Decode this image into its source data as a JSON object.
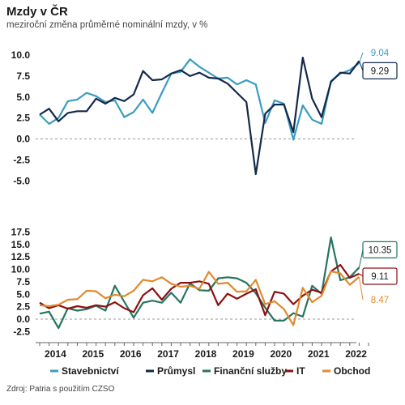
{
  "title": "Mzdy v ČR",
  "subtitle": "meziroční změna průměrné nominální mzdy, v %",
  "source": "Zdroj: Patria s použitím CZSO",
  "colors": {
    "stavebnictvi": "#3a9cbf",
    "prumysl": "#13294b",
    "financni": "#25755f",
    "it": "#8b1010",
    "obchod": "#e08a2e"
  },
  "chart_data": [
    {
      "type": "line",
      "x_tick_labels": [
        "2014",
        "2015",
        "2016",
        "2017",
        "2018",
        "2019",
        "2020",
        "2021",
        "2022"
      ],
      "x_unit": "quarter",
      "x_start": "2014Q1",
      "ylim": [
        -5,
        11
      ],
      "y_ticks": [
        "10.0",
        "7.5",
        "5.0",
        "2.5",
        "0.0",
        "-2.5",
        "-5.0"
      ],
      "y_tick_values": [
        10,
        7.5,
        5,
        2.5,
        0,
        -2.5,
        -5
      ],
      "series": [
        {
          "name": "Stavebnictví",
          "color_key": "stavebnictvi",
          "values": [
            2.9,
            1.8,
            2.5,
            4.5,
            4.7,
            5.5,
            5.1,
            4.4,
            4.6,
            2.6,
            3.2,
            4.7,
            3.1,
            5.5,
            7.8,
            8.0,
            9.5,
            8.6,
            7.9,
            7.2,
            7.3,
            6.5,
            7.0,
            6.5,
            1.9,
            4.6,
            4.2,
            -0.1,
            4.0,
            2.3,
            1.8,
            6.9,
            7.8,
            8.2,
            9.04
          ],
          "end_label": "9.04"
        },
        {
          "name": "Průmysl",
          "color_key": "prumysl",
          "values": [
            2.9,
            3.6,
            2.1,
            3.1,
            3.3,
            3.3,
            4.8,
            4.2,
            4.9,
            4.5,
            5.3,
            8.1,
            7.0,
            7.1,
            7.8,
            8.2,
            7.5,
            7.9,
            7.3,
            7.2,
            6.6,
            5.5,
            4.4,
            -4.2,
            3.0,
            4.1,
            4.1,
            0.8,
            9.7,
            4.8,
            2.6,
            6.8,
            7.9,
            7.8,
            9.29
          ],
          "end_label": "9.29"
        }
      ]
    },
    {
      "type": "line",
      "x_tick_labels": [
        "2014",
        "2015",
        "2016",
        "2017",
        "2018",
        "2019",
        "2020",
        "2021",
        "2022"
      ],
      "x_unit": "quarter",
      "x_start": "2014Q1",
      "ylim": [
        -3,
        18
      ],
      "y_ticks": [
        "17.5",
        "15.0",
        "12.5",
        "10.0",
        "7.5",
        "5.0",
        "2.5",
        "0.0",
        "-2.5"
      ],
      "y_tick_values": [
        17.5,
        15,
        12.5,
        10,
        7.5,
        5,
        2.5,
        0,
        -2.5
      ],
      "series": [
        {
          "name": "Finanční služby",
          "color_key": "financni",
          "values": [
            1.1,
            1.5,
            -1.8,
            2.2,
            1.7,
            2.0,
            2.7,
            1.7,
            6.7,
            3.5,
            0.3,
            3.3,
            3.7,
            3.3,
            5.3,
            3.3,
            7.2,
            5.8,
            5.7,
            8.2,
            8.4,
            8.2,
            7.3,
            5.2,
            2.3,
            -0.3,
            -0.3,
            1.2,
            0.5,
            6.7,
            5.1,
            16.4,
            7.8,
            8.4,
            10.35
          ],
          "end_label": "10.35"
        },
        {
          "name": "IT",
          "color_key": "it",
          "values": [
            3.3,
            2.2,
            2.8,
            2.1,
            2.6,
            2.3,
            2.8,
            2.5,
            3.4,
            2.2,
            1.4,
            4.8,
            6.2,
            3.9,
            6.1,
            7.3,
            7.3,
            7.6,
            7.1,
            2.8,
            5.1,
            4.1,
            5.1,
            6.0,
            0.8,
            5.5,
            5.1,
            3.0,
            4.7,
            5.9,
            5.3,
            9.6,
            10.9,
            8.3,
            9.11
          ],
          "end_label": "9.11"
        },
        {
          "name": "Obchod",
          "color_key": "obchod",
          "values": [
            2.8,
            2.6,
            2.9,
            3.9,
            4.0,
            5.7,
            5.6,
            4.2,
            4.9,
            4.6,
            5.7,
            7.9,
            7.6,
            8.4,
            7.1,
            6.5,
            6.7,
            6.1,
            9.5,
            7.1,
            7.3,
            5.5,
            5.6,
            7.9,
            3.0,
            3.6,
            2.0,
            -1.2,
            6.3,
            3.4,
            4.7,
            9.6,
            9.2,
            6.9,
            8.47
          ],
          "end_label": "8.47"
        }
      ]
    }
  ],
  "legend": [
    "Stavebnictví",
    "Průmysl",
    "Finanční služby",
    "IT",
    "Obchod"
  ]
}
